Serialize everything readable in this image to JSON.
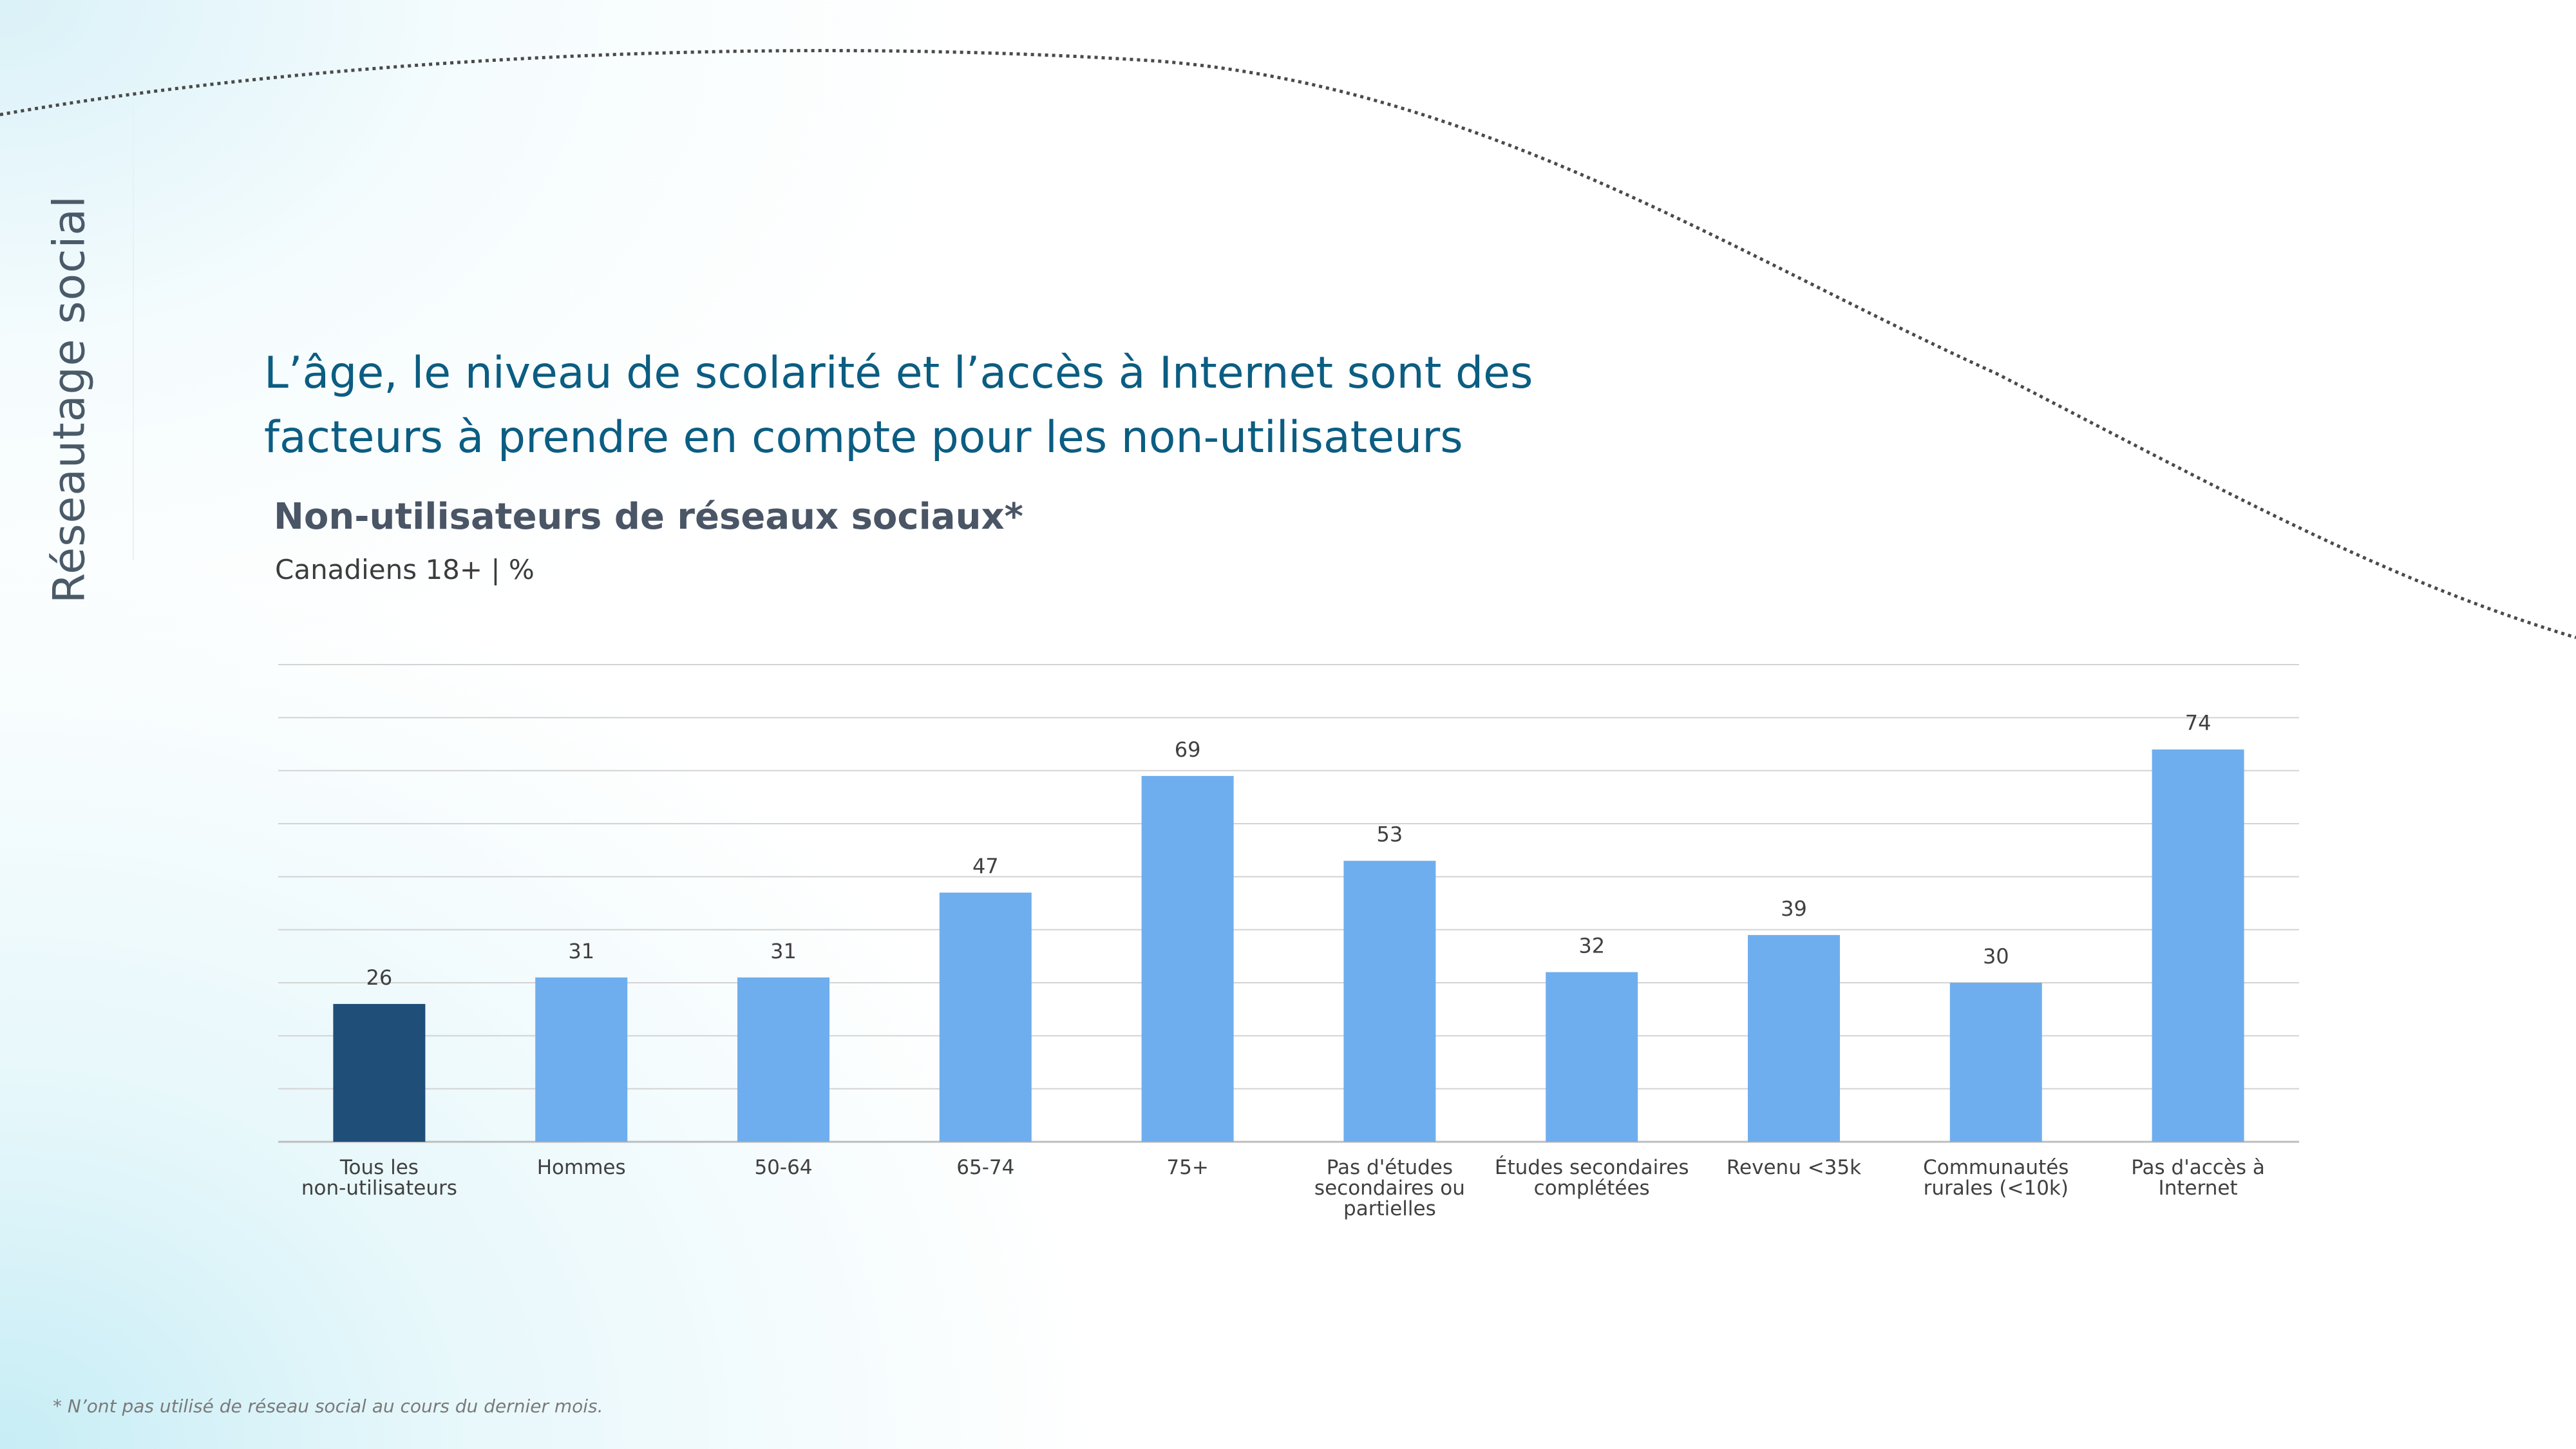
{
  "side_label": "Réseautage social",
  "headline": {
    "line1": "L’âge, le niveau de scolarité et l’accès à Internet sont des",
    "line2": "facteurs à prendre en compte pour les non-utilisateurs"
  },
  "footnote": "* N’ont pas utilisé de réseau social au cours du dernier mois.",
  "colors": {
    "highlight_bar": "#1f4e79",
    "bar": "#6faeee",
    "grid": "#d3d3d3",
    "headline": "#0b5d82"
  },
  "chart_data": {
    "type": "bar",
    "title": "Non-utilisateurs de réseaux sociaux*",
    "subtitle": "Canadiens 18+ | %",
    "categories": [
      [
        "Tous les",
        "non-utilisateurs"
      ],
      [
        "Hommes"
      ],
      [
        "50-64"
      ],
      [
        "65-74"
      ],
      [
        "75+"
      ],
      [
        "Pas d'études",
        "secondaires ou",
        "partielles"
      ],
      [
        "Études secondaires",
        "complétées"
      ],
      [
        "Revenu <35k"
      ],
      [
        "Communautés",
        "rurales (<10k)"
      ],
      [
        "Pas d'accès à",
        "Internet"
      ]
    ],
    "values": [
      26,
      31,
      31,
      47,
      69,
      53,
      32,
      39,
      30,
      74
    ],
    "highlight_index": 0,
    "ylim": [
      0,
      90
    ],
    "ytick_step": 10,
    "grid": true,
    "xlabel": "",
    "ylabel": ""
  }
}
